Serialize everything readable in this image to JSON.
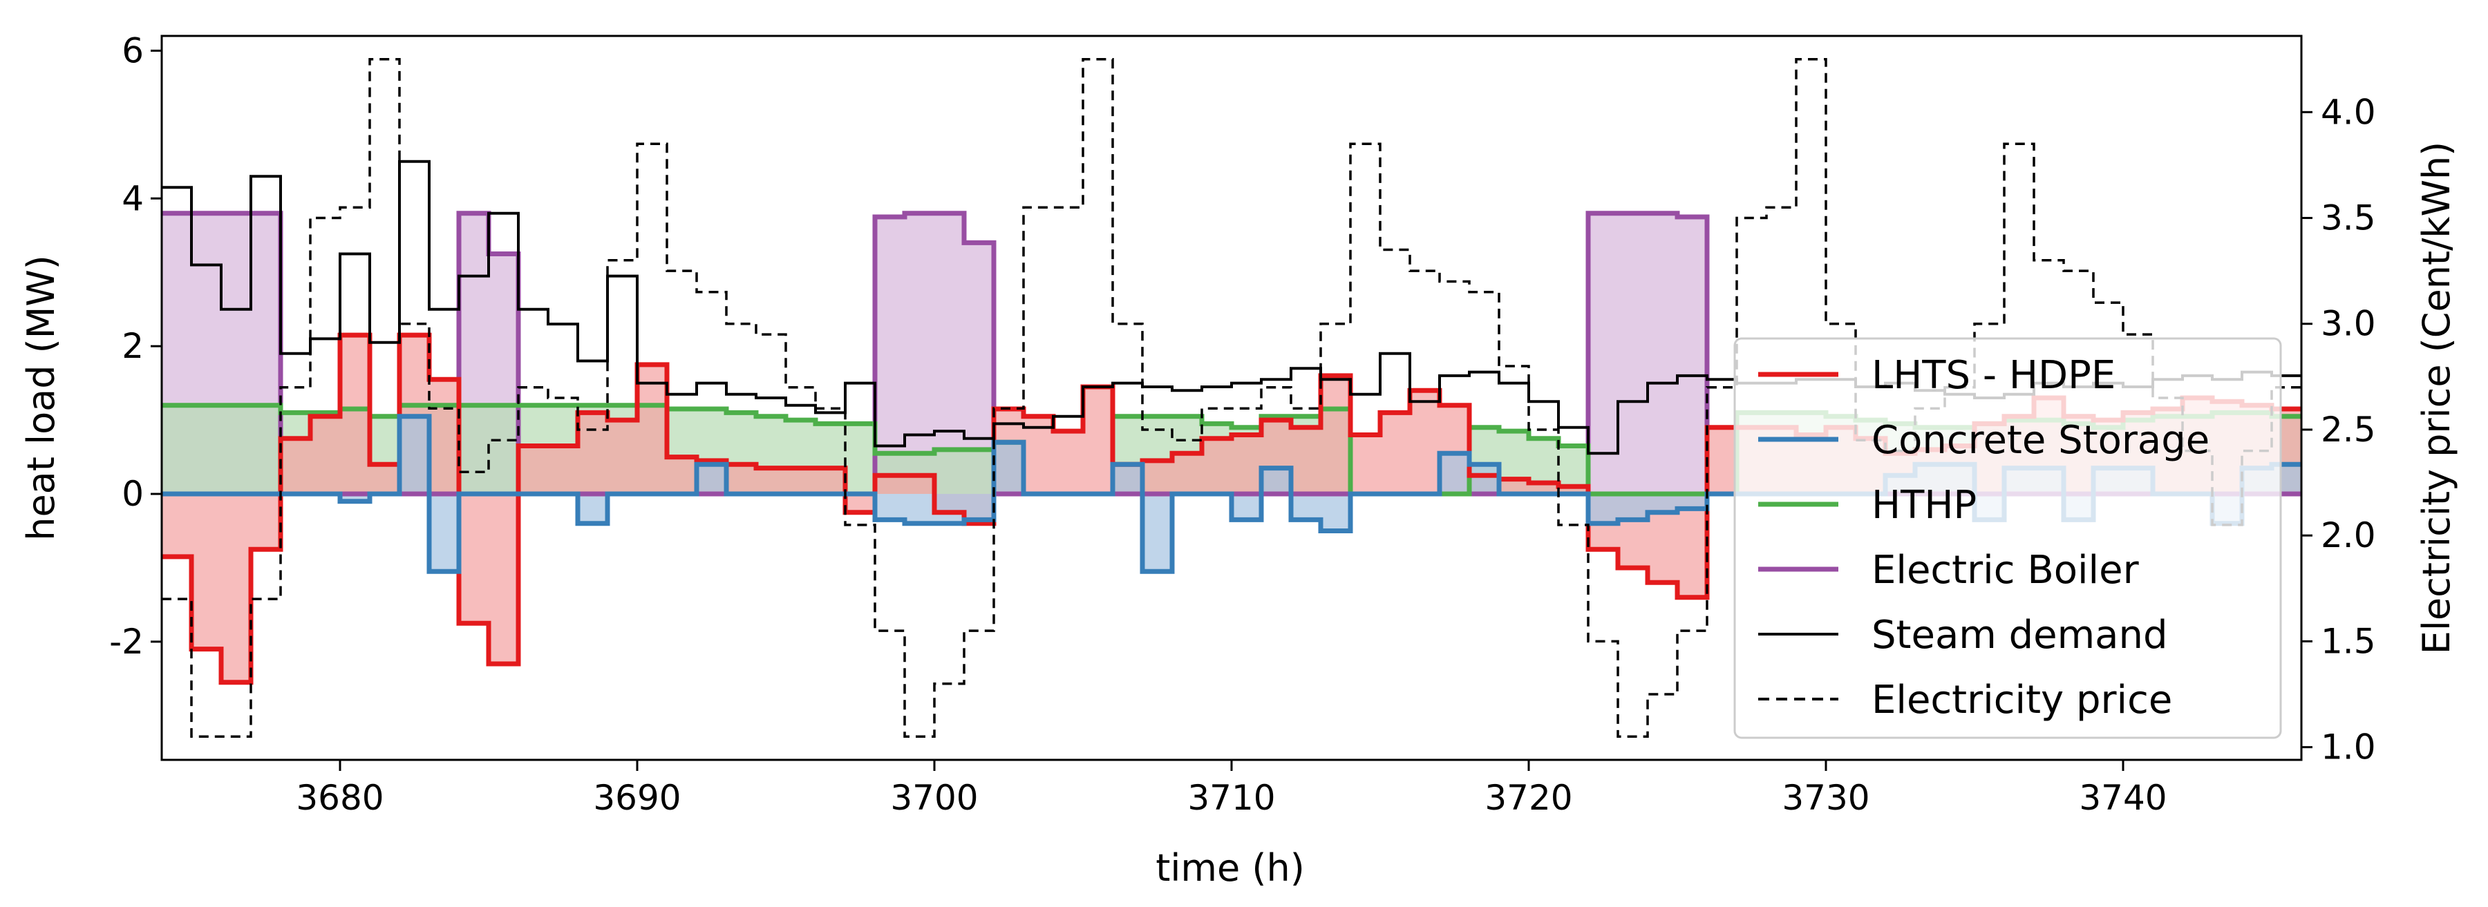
{
  "chart_data": {
    "type": "step-area",
    "xlabel": "time (h)",
    "ylabel_left": "heat load (MW)",
    "ylabel_right": "Electricity price (Cent/kWh)",
    "xlim": [
      3674,
      3746
    ],
    "ylim_left": [
      -3.6,
      6.2
    ],
    "ylim_right": [
      0.94,
      4.36
    ],
    "xticks": [
      3680,
      3690,
      3700,
      3710,
      3720,
      3730,
      3740
    ],
    "yticks_left": [
      -2,
      0,
      2,
      4,
      6
    ],
    "yticks_right": [
      1.0,
      1.5,
      2.0,
      2.5,
      3.0,
      3.5,
      4.0
    ],
    "ytick_left_labels": [
      "-2",
      "0",
      "2",
      "4",
      "6"
    ],
    "ytick_right_labels": [
      "1.0",
      "1.5",
      "2.0",
      "2.5",
      "3.0",
      "3.5",
      "4.0"
    ],
    "x_start": 3674,
    "series": [
      {
        "name": "Electric Boiler",
        "axis": "left",
        "color": "#984ea3",
        "fill": "#d8b9dc",
        "style": "solid",
        "values": [
          3.8,
          3.8,
          3.8,
          3.8,
          0,
          0,
          0,
          0,
          0,
          0,
          3.8,
          3.25,
          0,
          0,
          0,
          0,
          0,
          0,
          0,
          0,
          0,
          0,
          0,
          0,
          3.75,
          3.8,
          3.8,
          3.4,
          0,
          0,
          0,
          0,
          0,
          0,
          0,
          0,
          0,
          0,
          0,
          0,
          0,
          0,
          0,
          0,
          0,
          0,
          0,
          0,
          3.8,
          3.8,
          3.8,
          3.75,
          0,
          0,
          0,
          0,
          0,
          0,
          0,
          0,
          0,
          0,
          0,
          0,
          0,
          0,
          0,
          0,
          0,
          0,
          0,
          0,
          0,
          0
        ]
      },
      {
        "name": "HTHP",
        "axis": "left",
        "color": "#4daf4a",
        "fill": "#b8ddb5",
        "style": "solid",
        "values": [
          1.2,
          1.2,
          1.2,
          1.2,
          1.1,
          1.1,
          1.15,
          1.05,
          1.2,
          1.2,
          1.2,
          1.2,
          1.2,
          1.2,
          1.2,
          1.2,
          1.2,
          1.15,
          1.15,
          1.1,
          1.05,
          1.0,
          0.95,
          0.95,
          0.55,
          0.55,
          0.6,
          0.6,
          0.7,
          0,
          0,
          0,
          1.05,
          1.05,
          1.05,
          0.95,
          0.9,
          1.05,
          1.05,
          1.15,
          0,
          0,
          0,
          0,
          0.9,
          0.85,
          0.75,
          0.65,
          0,
          0,
          0,
          0,
          0,
          1.1,
          1.1,
          1.1,
          1.05,
          1.0,
          0.95,
          0.9,
          0.9,
          0.95,
          1.0,
          1.0,
          0.95,
          0.9,
          1.0,
          1.05,
          1.05,
          1.1,
          1.1,
          1.05
        ]
      },
      {
        "name": "LHTS - HDPE",
        "axis": "left",
        "color": "#e41a1c",
        "fill": "#f4a3a4",
        "style": "solid",
        "values": [
          -0.85,
          -2.1,
          -2.55,
          -0.75,
          0.75,
          1.05,
          2.15,
          0.4,
          2.15,
          1.55,
          -1.75,
          -2.3,
          0.65,
          0.65,
          1.1,
          1.0,
          1.75,
          0.5,
          0.45,
          0.4,
          0.35,
          0.35,
          0.35,
          -0.25,
          0.25,
          0.25,
          -0.25,
          -0.4,
          1.15,
          1.05,
          0.85,
          1.45,
          0.4,
          0.45,
          0.55,
          0.75,
          0.8,
          1.0,
          0.9,
          1.6,
          0.8,
          1.1,
          1.4,
          1.2,
          0.25,
          0.2,
          0.15,
          0.1,
          -0.75,
          -1.0,
          -1.2,
          -1.4,
          0.9,
          0.9,
          0.9,
          0.8,
          0.9,
          0.75,
          0.55,
          0.6,
          0.65,
          0.95,
          1.05,
          1.3,
          1.05,
          1.0,
          1.1,
          1.15,
          1.3,
          1.25,
          1.2,
          1.15
        ]
      },
      {
        "name": "Concrete Storage",
        "axis": "left",
        "color": "#377eb8",
        "fill": "#a7c5e2",
        "style": "solid",
        "values": [
          0,
          0,
          0,
          0,
          0,
          0,
          -0.1,
          0,
          1.05,
          -1.05,
          0,
          0,
          0,
          0,
          -0.4,
          0,
          0,
          0,
          0.4,
          0,
          0,
          0,
          0,
          0,
          -0.35,
          -0.4,
          -0.4,
          -0.35,
          0.7,
          0,
          0,
          0,
          0.4,
          -1.05,
          0,
          0,
          -0.35,
          0.35,
          -0.35,
          -0.5,
          0,
          0,
          0,
          0.55,
          0.4,
          0,
          0,
          0,
          -0.4,
          -0.35,
          -0.25,
          -0.2,
          0,
          0,
          0,
          0,
          0,
          0,
          0.25,
          0.4,
          0.4,
          -0.35,
          0.35,
          0.35,
          -0.35,
          0.35,
          0.35,
          0,
          0,
          -0.4,
          0.35,
          0.4
        ]
      },
      {
        "name": "Steam demand",
        "axis": "left",
        "color": "#000000",
        "fill": "none",
        "style": "solid",
        "values": [
          4.15,
          3.1,
          2.5,
          4.3,
          1.9,
          2.1,
          3.25,
          2.05,
          4.5,
          2.5,
          2.95,
          3.8,
          2.5,
          2.3,
          1.8,
          2.95,
          1.5,
          1.35,
          1.5,
          1.35,
          1.3,
          1.2,
          1.1,
          1.5,
          0.65,
          0.8,
          0.85,
          0.75,
          0.95,
          0.9,
          1.05,
          1.45,
          1.5,
          1.45,
          1.4,
          1.45,
          1.5,
          1.55,
          1.7,
          1.55,
          1.35,
          1.9,
          1.25,
          1.6,
          1.65,
          1.5,
          1.25,
          0.9,
          0.55,
          1.25,
          1.5,
          1.6,
          1.55,
          1.5,
          1.5,
          1.55,
          1.55,
          1.45,
          1.5,
          1.4,
          1.35,
          1.3,
          1.35,
          1.5,
          1.45,
          1.5,
          1.45,
          1.55,
          1.6,
          1.55,
          1.65,
          1.6
        ]
      },
      {
        "name": "Electricity price",
        "axis": "right",
        "color": "#000000",
        "fill": "none",
        "style": "dashed",
        "values": [
          1.7,
          1.05,
          1.05,
          1.7,
          2.7,
          3.5,
          3.55,
          4.25,
          3.0,
          2.6,
          2.3,
          2.45,
          2.7,
          2.65,
          2.5,
          3.3,
          3.85,
          3.25,
          3.15,
          3.0,
          2.95,
          2.7,
          2.6,
          2.05,
          1.55,
          1.05,
          1.3,
          1.55,
          2.6,
          3.55,
          3.55,
          4.25,
          3.0,
          2.5,
          2.45,
          2.6,
          2.6,
          2.7,
          2.6,
          3.0,
          3.85,
          3.35,
          3.25,
          3.2,
          3.15,
          2.8,
          2.5,
          2.05,
          1.5,
          1.05,
          1.25,
          1.55,
          2.7,
          3.5,
          3.55,
          4.25,
          3.0,
          2.45,
          2.4,
          2.6,
          2.7,
          3.0,
          3.85,
          3.3,
          3.25,
          3.1,
          2.95,
          2.65,
          2.4,
          2.05,
          2.4,
          2.7
        ]
      }
    ],
    "legend": {
      "position": "center-right",
      "entries": [
        {
          "label": "LHTS - HDPE",
          "color": "#e41a1c",
          "style": "solid"
        },
        {
          "label": "Concrete Storage",
          "color": "#377eb8",
          "style": "solid"
        },
        {
          "label": "HTHP",
          "color": "#4daf4a",
          "style": "solid"
        },
        {
          "label": "Electric Boiler",
          "color": "#984ea3",
          "style": "solid"
        },
        {
          "label": "Steam demand",
          "color": "#000000",
          "style": "thin"
        },
        {
          "label": "Electricity price",
          "color": "#000000",
          "style": "dashed"
        }
      ]
    }
  }
}
